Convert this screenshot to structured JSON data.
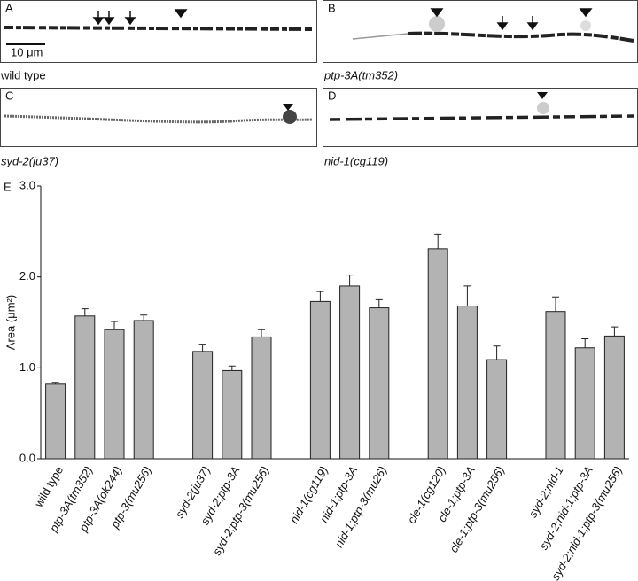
{
  "panels": [
    {
      "letter": "A",
      "caption": "wild type",
      "scale_bar": "10 μm"
    },
    {
      "letter": "B",
      "caption": "ptp-3A(tm352)"
    },
    {
      "letter": "C",
      "caption": "syd-2(ju37)"
    },
    {
      "letter": "D",
      "caption": "nid-1(cg119)"
    }
  ],
  "chart_data": {
    "type": "bar",
    "label": "E",
    "ylabel": "Area (μm²)",
    "categories": [
      "wild type",
      "ptp-3A(tm352)",
      "ptp-3A(ok244)",
      "ptp-3(mu256)",
      null,
      "syd-2(ju37)",
      "syd-2;ptp-3A",
      "syd-2;ptp-3(mu256)",
      null,
      "nid-1(cg119)",
      "nid-1;ptp-3A",
      "nid-1;ptp-3(mu26)",
      null,
      "cle-1(cg120)",
      "cle-1;ptp-3A",
      "cle-1;ptp-3(mu256)",
      null,
      "syd-2;nid-1",
      "syd-2;nid-1;ptp-3A",
      "syd-2;nid-1;ptp-3(mu256)"
    ],
    "values": [
      0.82,
      1.57,
      1.42,
      1.52,
      null,
      1.18,
      0.97,
      1.34,
      null,
      1.73,
      1.9,
      1.66,
      null,
      2.31,
      1.68,
      1.09,
      null,
      1.62,
      1.22,
      1.35
    ],
    "error": [
      0.02,
      0.08,
      0.09,
      0.06,
      null,
      0.08,
      0.05,
      0.08,
      null,
      0.11,
      0.12,
      0.09,
      null,
      0.16,
      0.22,
      0.15,
      null,
      0.16,
      0.1,
      0.1
    ],
    "color": "#b3b3b3",
    "ylim": [
      0,
      3
    ],
    "yticks": [
      {
        "value": 0,
        "label": "0.0"
      },
      {
        "value": 1,
        "label": "1.0"
      },
      {
        "value": 2,
        "label": "2.0"
      },
      {
        "value": 3,
        "label": "3.0"
      }
    ]
  }
}
